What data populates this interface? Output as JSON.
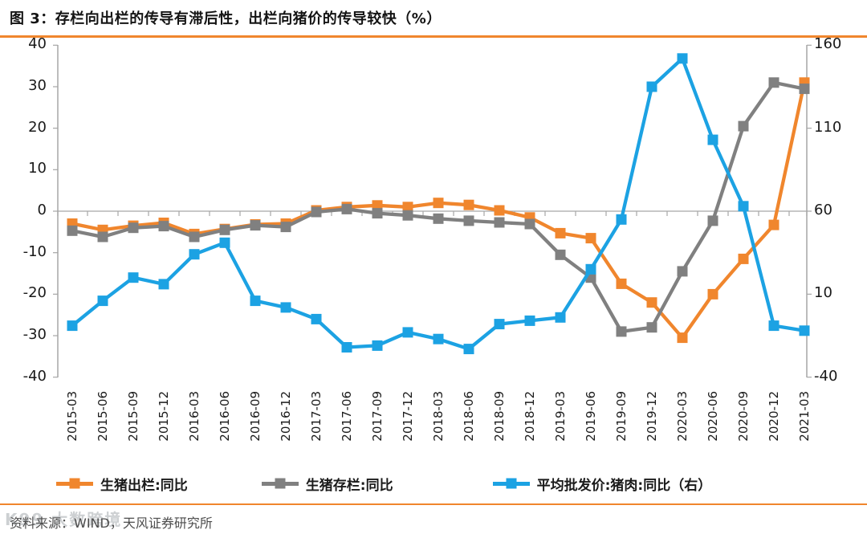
{
  "header": {
    "title": "图 3：存栏向出栏的传导有滞后性，出栏向猪价的传导较快（%）",
    "accent_color": "#F0862D"
  },
  "footer": {
    "source": "资料来源：WIND，天风证券研究所",
    "watermark": "K99 大数跨境"
  },
  "chart_data": {
    "type": "line",
    "title": "存栏向出栏的传导有滞后性，出栏向猪价的传导较快（%）",
    "grid": "zero-line-only",
    "legend_position": "bottom",
    "axis_color": "#A6A6A6",
    "categories": [
      "2015-03",
      "2015-06",
      "2015-09",
      "2015-12",
      "2016-03",
      "2016-06",
      "2016-09",
      "2016-12",
      "2017-03",
      "2017-06",
      "2017-09",
      "2017-12",
      "2018-03",
      "2018-06",
      "2018-09",
      "2018-12",
      "2019-03",
      "2019-06",
      "2019-09",
      "2019-12",
      "2020-03",
      "2020-06",
      "2020-09",
      "2020-12",
      "2021-03"
    ],
    "left_axis": {
      "min": -40,
      "max": 40,
      "ticks": [
        40,
        30,
        20,
        10,
        0,
        -10,
        -20,
        -30,
        -40
      ]
    },
    "right_axis": {
      "min": -40,
      "max": 160,
      "ticks": [
        160,
        110,
        60,
        10,
        -40
      ]
    },
    "series": [
      {
        "name": "生猪出栏:同比",
        "axis": "left",
        "color": "#F0862D",
        "values": [
          -3.0,
          -4.5,
          -3.5,
          -2.8,
          -5.5,
          -4.3,
          -3.2,
          -3.0,
          0.2,
          1.0,
          1.4,
          1.0,
          2.0,
          1.5,
          0.2,
          -1.5,
          -5.3,
          -6.5,
          -17.5,
          -22.0,
          -30.5,
          -20.0,
          -11.5,
          -3.3,
          31.0
        ]
      },
      {
        "name": "生猪存栏:同比",
        "axis": "left",
        "color": "#808080",
        "values": [
          -4.7,
          -6.2,
          -4.0,
          -3.6,
          -6.2,
          -4.5,
          -3.4,
          -3.8,
          -0.2,
          0.5,
          -0.5,
          -1.0,
          -1.8,
          -2.3,
          -2.7,
          -3.1,
          -10.5,
          -16.0,
          -29.0,
          -28.0,
          -14.5,
          -2.3,
          20.5,
          31.0,
          29.5
        ]
      },
      {
        "name": "平均批发价:猪肉:同比（右）",
        "axis": "right",
        "color": "#1CA2E3",
        "values": [
          -9,
          6,
          20,
          16,
          34,
          41,
          6,
          2,
          -5,
          -22,
          -21,
          -13,
          -17,
          -23,
          -8,
          -6,
          -4,
          25,
          55,
          135,
          152,
          103,
          63,
          -9,
          -12
        ]
      }
    ]
  }
}
